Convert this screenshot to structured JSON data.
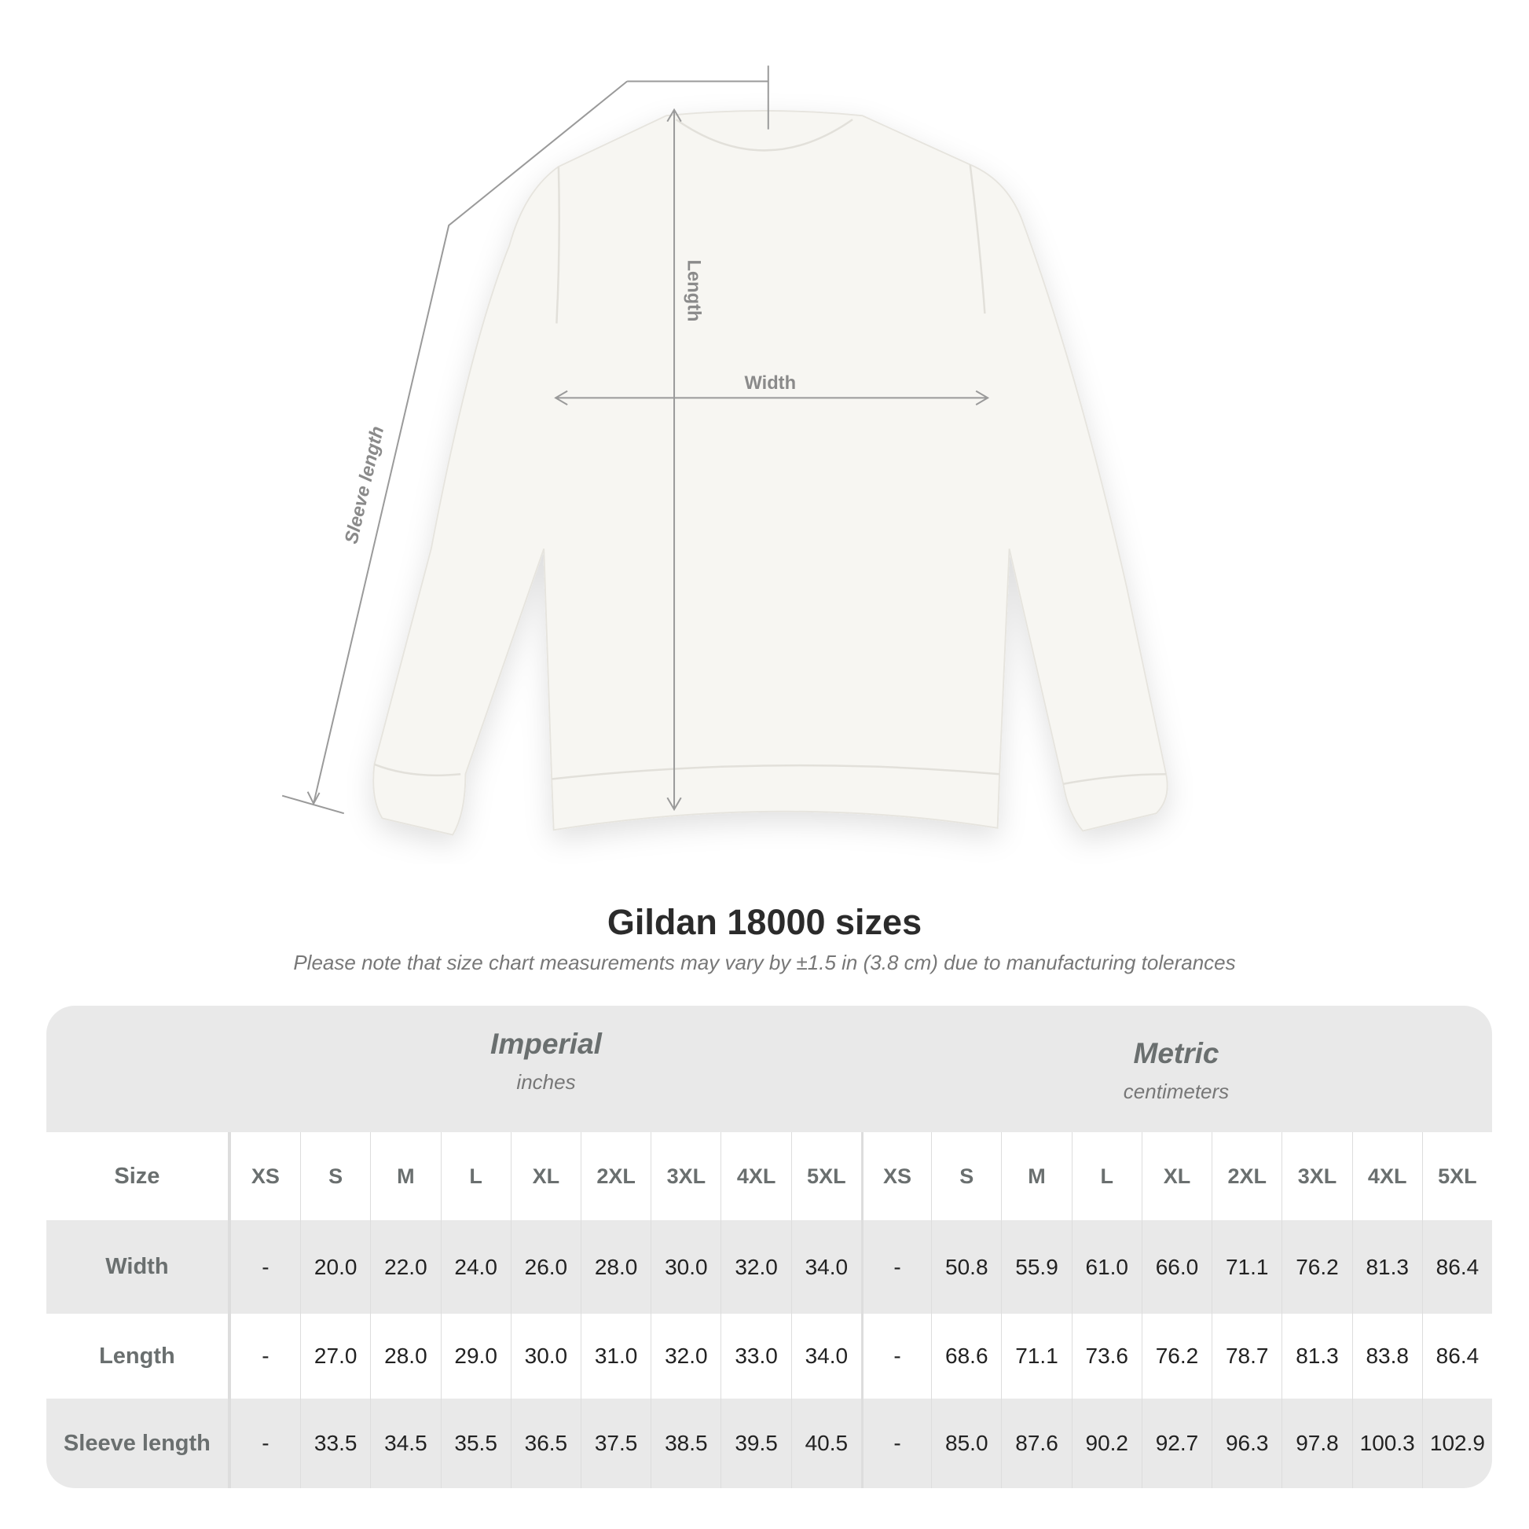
{
  "diagram": {
    "length_label": "Length",
    "width_label": "Width",
    "sleeve_label": "Sleeve length",
    "line_color": "#9a9a9a",
    "garment_color": "#f7f6f2"
  },
  "title": "Gildan 18000 sizes",
  "note": "Please note that size chart measurements may vary by ±1.5 in (3.8 cm) due to manufacturing tolerances",
  "table": {
    "imperial": {
      "title": "Imperial",
      "unit": "inches"
    },
    "metric": {
      "title": "Metric",
      "unit": "centimeters"
    },
    "size_label": "Size",
    "sizes": [
      "XS",
      "S",
      "M",
      "L",
      "XL",
      "2XL",
      "3XL",
      "4XL",
      "5XL"
    ],
    "rows": [
      {
        "label": "Width",
        "imperial": [
          "-",
          "20.0",
          "22.0",
          "24.0",
          "26.0",
          "28.0",
          "30.0",
          "32.0",
          "34.0"
        ],
        "metric": [
          "-",
          "50.8",
          "55.9",
          "61.0",
          "66.0",
          "71.1",
          "76.2",
          "81.3",
          "86.4"
        ]
      },
      {
        "label": "Length",
        "imperial": [
          "-",
          "27.0",
          "28.0",
          "29.0",
          "30.0",
          "31.0",
          "32.0",
          "33.0",
          "34.0"
        ],
        "metric": [
          "-",
          "68.6",
          "71.1",
          "73.6",
          "76.2",
          "78.7",
          "81.3",
          "83.8",
          "86.4"
        ]
      },
      {
        "label": "Sleeve length",
        "imperial": [
          "-",
          "33.5",
          "34.5",
          "35.5",
          "36.5",
          "37.5",
          "38.5",
          "39.5",
          "40.5"
        ],
        "metric": [
          "-",
          "85.0",
          "87.6",
          "90.2",
          "92.7",
          "96.3",
          "97.8",
          "100.3",
          "102.9"
        ]
      }
    ]
  }
}
